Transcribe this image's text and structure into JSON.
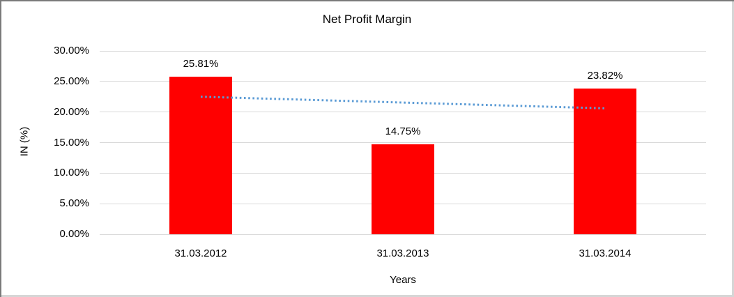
{
  "chart_data": {
    "type": "bar",
    "title": "Net Profit Margin",
    "categories": [
      "31.03.2012",
      "31.03.2013",
      "31.03.2014"
    ],
    "values": [
      25.81,
      14.75,
      23.82
    ],
    "value_labels": [
      "25.81%",
      "14.75%",
      "23.82%"
    ],
    "xlabel": "Years",
    "ylabel": "IN (%)",
    "ylim": [
      0,
      30
    ],
    "ytick_step": 5,
    "ytick_labels": [
      "0.00%",
      "5.00%",
      "10.00%",
      "15.00%",
      "20.00%",
      "25.00%",
      "30.00%"
    ],
    "grid": true,
    "legend": "none",
    "colors": {
      "bar": "#FF0000",
      "gridline": "#D9D9D9",
      "text": "#000000",
      "trendline": "#5B9BD5",
      "background": "#FFFFFF"
    },
    "trendline": {
      "type": "linear",
      "style": "dotted",
      "start_value": 22.5,
      "end_value": 20.6
    }
  }
}
